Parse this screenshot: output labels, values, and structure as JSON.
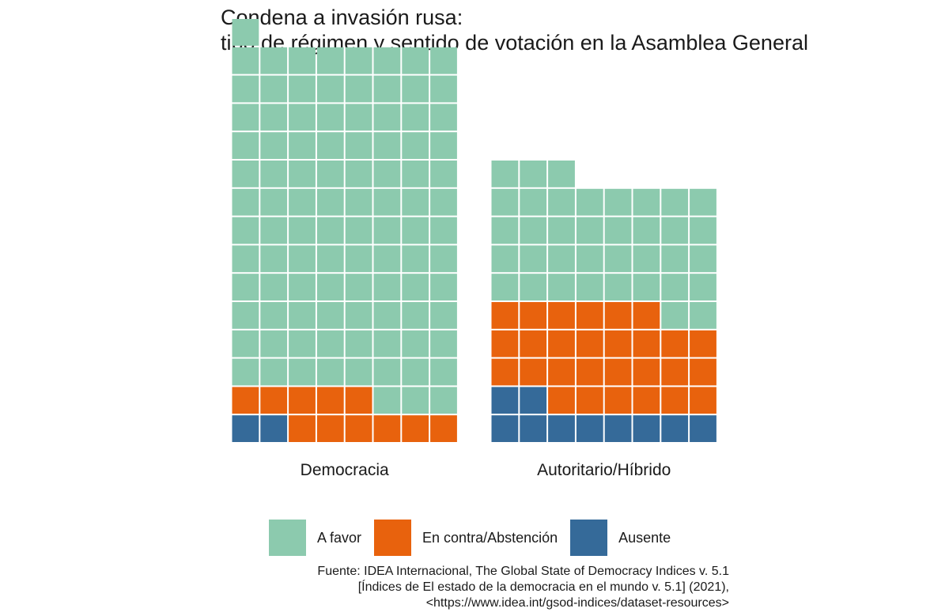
{
  "chart_data": {
    "type": "waffle",
    "title_lines": [
      "Condena a invasión rusa:",
      "tipo de régimen y sentido de votación en la Asamblea General"
    ],
    "columns_per_group": 8,
    "categories": [
      "Democracia",
      "Autoritario/Híbrido"
    ],
    "series": [
      {
        "name": "Ausente",
        "color": "#356a99",
        "values": [
          2,
          10
        ]
      },
      {
        "name": "En contra/Abstención",
        "color": "#e8620d",
        "values": [
          11,
          28
        ]
      },
      {
        "name": "A favor",
        "color": "#8ccaae",
        "values": [
          100,
          37
        ]
      }
    ],
    "legend": {
      "position": "bottom",
      "order": [
        "A favor",
        "En contra/Abstención",
        "Ausente"
      ]
    },
    "caption_lines": [
      "Fuente: IDEA Internacional, The Global State of Democracy Indices v. 5.1",
      "[Índices de El estado de la democracia en el mundo v. 5.1] (2021),",
      "<https://www.idea.int/gsod-indices/dataset-resources>"
    ]
  }
}
